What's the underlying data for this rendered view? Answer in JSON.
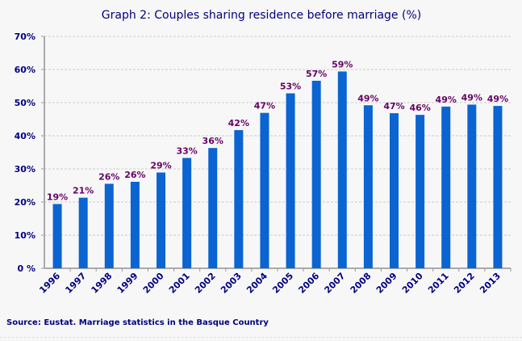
{
  "chart_data": {
    "type": "bar",
    "title": "Graph 2: Couples sharing residence before marriage (%)",
    "source": "Source: Eustat. Marriage statistics in the Basque Country",
    "categories": [
      "1996",
      "1997",
      "1998",
      "1999",
      "2000",
      "2001",
      "2002",
      "2003",
      "2004",
      "2005",
      "2006",
      "2007",
      "2008",
      "2009",
      "2010",
      "2011",
      "2012",
      "2013"
    ],
    "values": [
      19.4,
      21.3,
      25.5,
      26.1,
      28.9,
      33.3,
      36.3,
      41.7,
      46.9,
      52.8,
      56.6,
      59.4,
      49.2,
      46.8,
      46.3,
      48.8,
      49.4,
      49.0
    ],
    "data_labels": [
      "19%",
      "21%",
      "26%",
      "26%",
      "29%",
      "33%",
      "36%",
      "42%",
      "47%",
      "53%",
      "57%",
      "59%",
      "49%",
      "47%",
      "46%",
      "49%",
      "49%",
      "49%"
    ],
    "ylim": [
      0,
      70
    ],
    "yticks": [
      "0 %",
      "10%",
      "20%",
      "30%",
      "40%",
      "50%",
      "60%",
      "70%"
    ],
    "grid": true,
    "bar_color": "#0a64d2",
    "label_color": "#660066",
    "text_color": "#000080"
  }
}
